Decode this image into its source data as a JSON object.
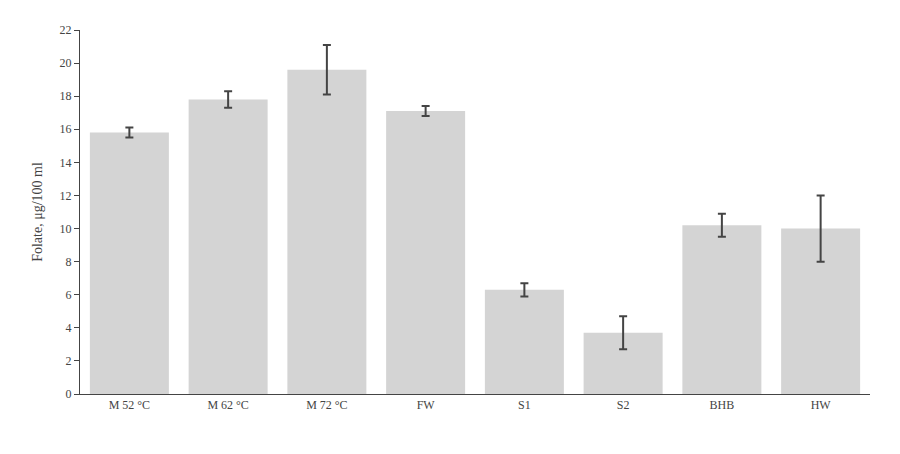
{
  "chart_data": {
    "type": "bar",
    "categories": [
      "M 52 °C",
      "M 62 °C",
      "M 72 °C",
      "FW",
      "S1",
      "S2",
      "BHB",
      "HW"
    ],
    "values": [
      15.8,
      17.8,
      19.6,
      17.1,
      6.3,
      3.7,
      10.2,
      10.0
    ],
    "errors": [
      0.3,
      0.5,
      1.5,
      0.3,
      0.4,
      1.0,
      0.7,
      2.0
    ],
    "color": "#d4d4d4",
    "ylabel": "Folate, μg/100 ml",
    "ylim": [
      0,
      22
    ],
    "yticks": [
      0,
      2,
      4,
      6,
      8,
      10,
      12,
      14,
      16,
      18,
      20,
      22
    ],
    "grid": false
  }
}
